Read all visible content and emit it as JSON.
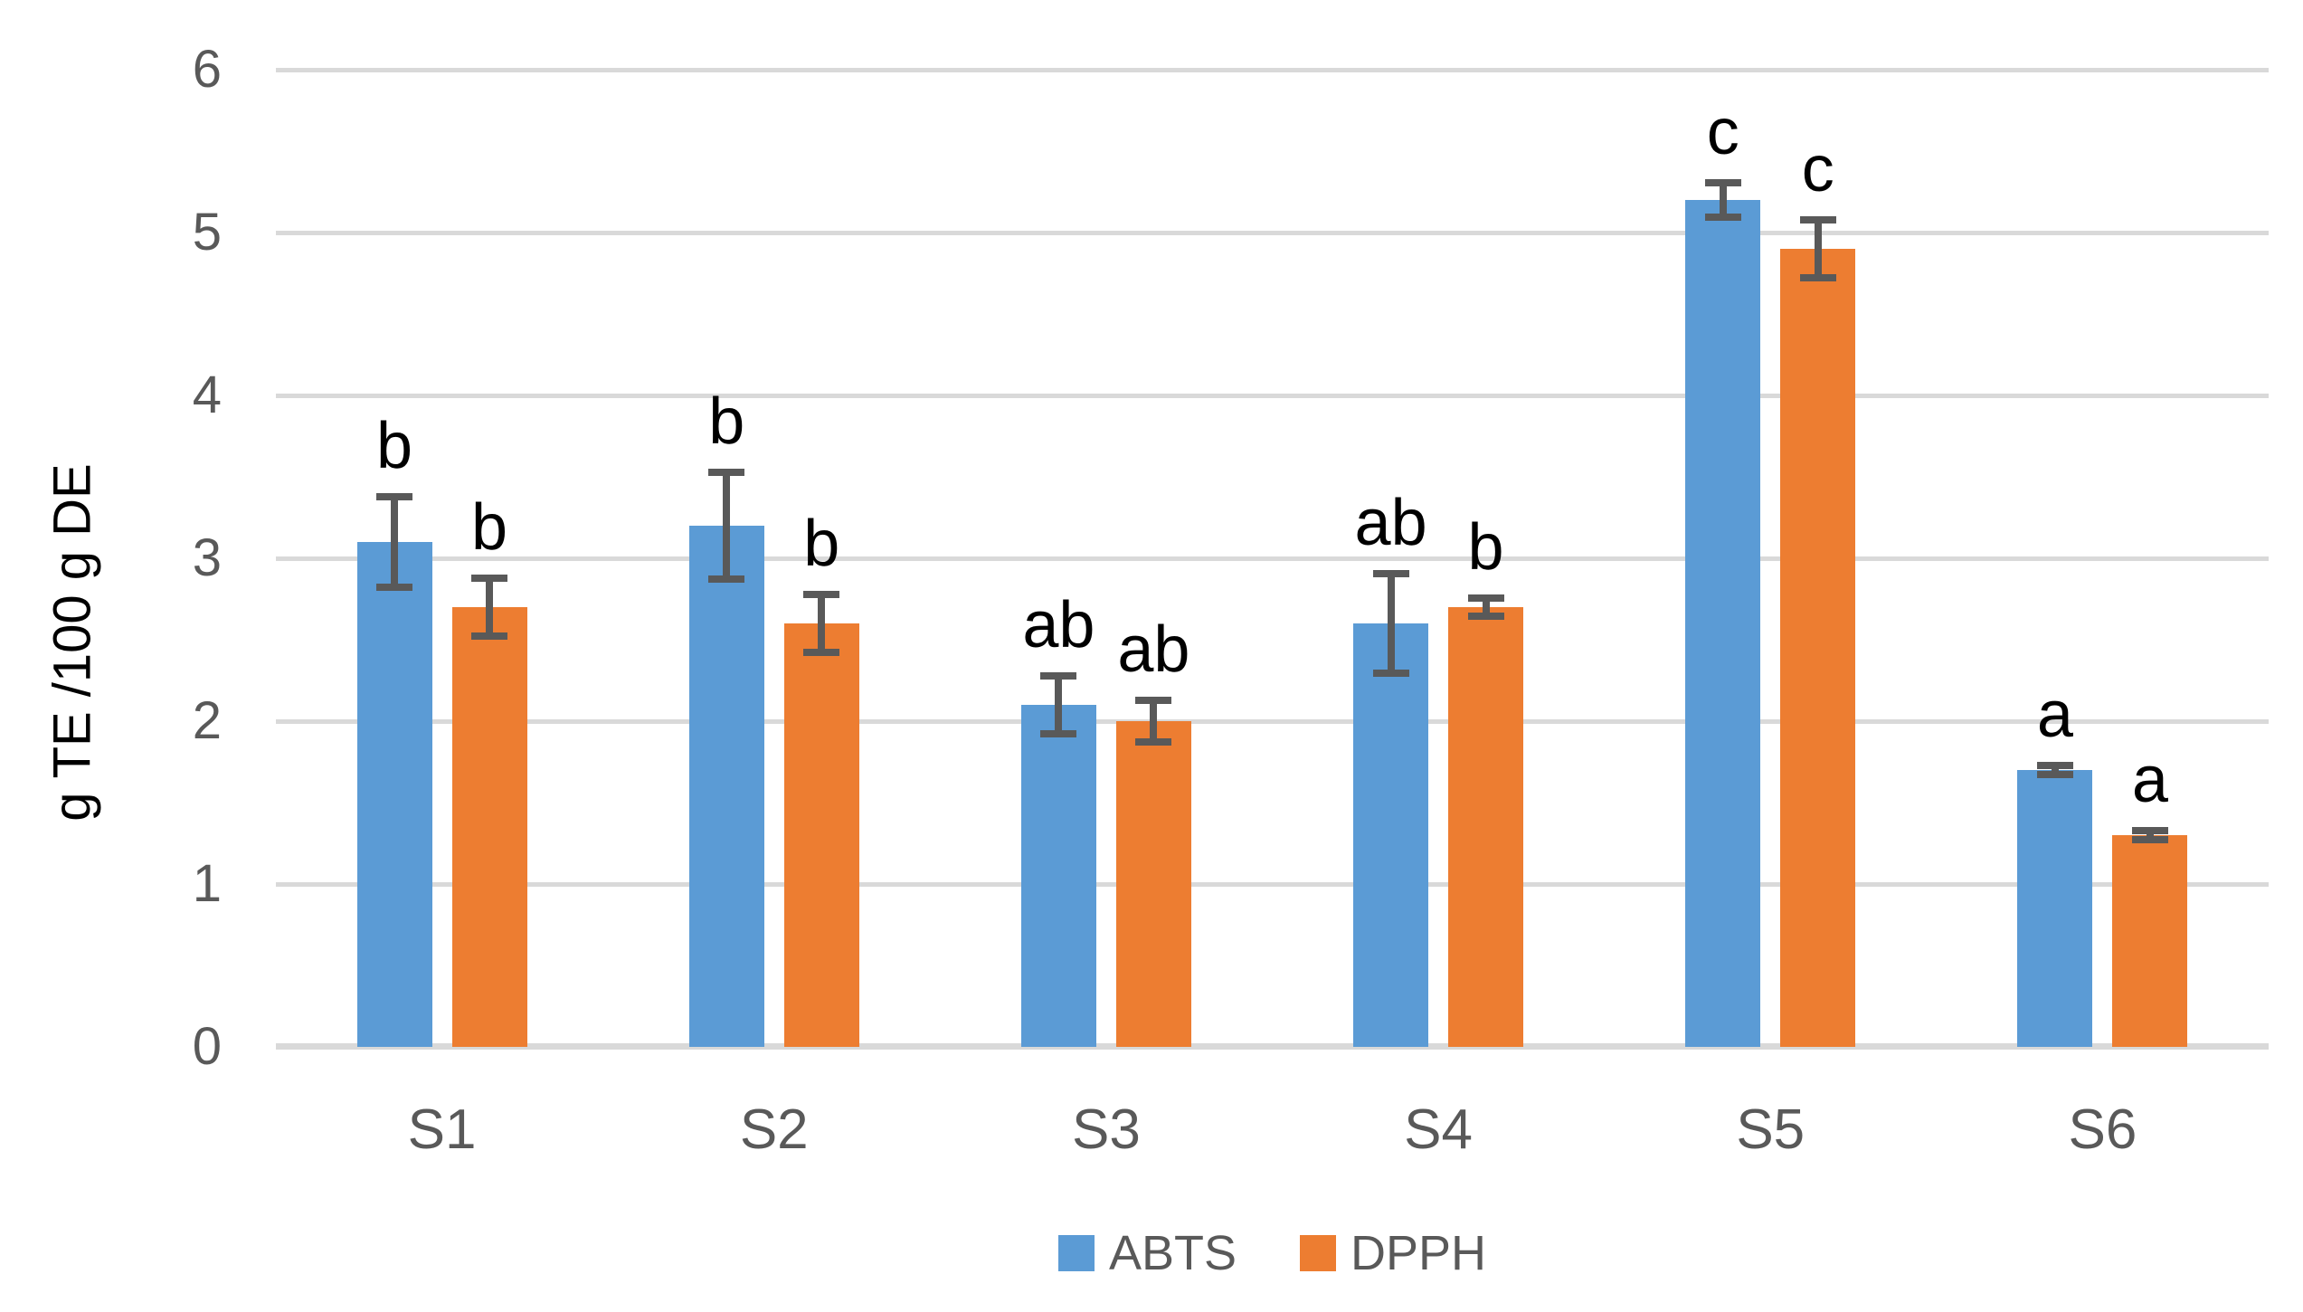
{
  "chart_data": {
    "type": "bar",
    "title": "",
    "categories": [
      "S1",
      "S2",
      "S3",
      "S4",
      "S5",
      "S6"
    ],
    "series": [
      {
        "name": "ABTS",
        "color": "#5B9BD5",
        "values": [
          3.1,
          3.2,
          2.1,
          2.6,
          5.2,
          1.7
        ],
        "errors": [
          0.3,
          0.35,
          0.2,
          0.33,
          0.13,
          0.05
        ],
        "letters": [
          "b",
          "b",
          "ab",
          "ab",
          "c",
          "a"
        ]
      },
      {
        "name": "DPPH",
        "color": "#ED7D31",
        "values": [
          2.7,
          2.6,
          2.0,
          2.7,
          4.9,
          1.3
        ],
        "errors": [
          0.2,
          0.2,
          0.15,
          0.08,
          0.2,
          0.05
        ],
        "letters": [
          "b",
          "b",
          "ab",
          "b",
          "c",
          "a"
        ]
      }
    ],
    "xlabel": "",
    "ylabel": "g TE /100 g DE",
    "ylim": [
      0,
      6
    ],
    "yticks": [
      0,
      1,
      2,
      3,
      4,
      5,
      6
    ],
    "grid": true,
    "legend_position": "bottom",
    "colors": {
      "gridline": "#D9D9D9",
      "error_bar": "#595959",
      "tick_label": "#595959",
      "significance_letter": "#000000",
      "background": "#FFFFFF"
    }
  }
}
